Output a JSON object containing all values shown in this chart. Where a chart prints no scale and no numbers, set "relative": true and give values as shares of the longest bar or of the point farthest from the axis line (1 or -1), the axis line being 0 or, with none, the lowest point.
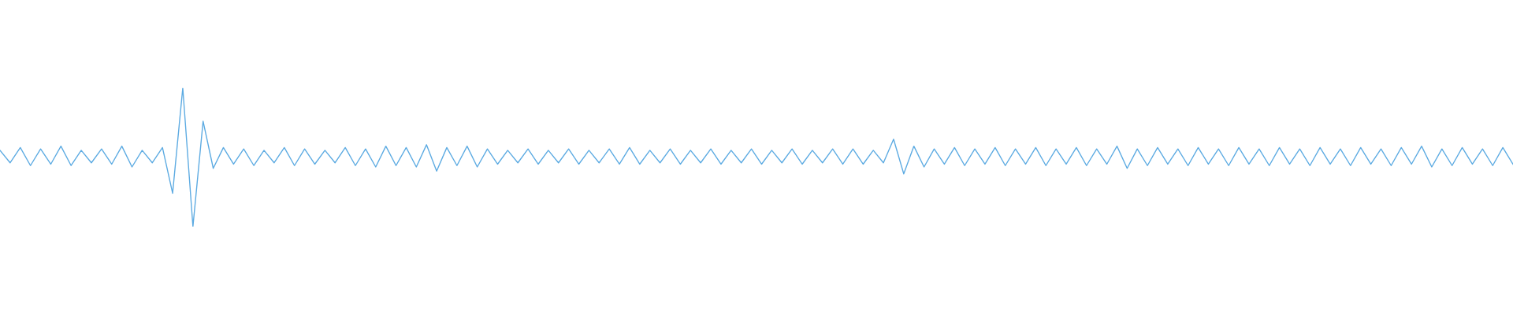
{
  "chart_data": {
    "type": "line",
    "relative": true,
    "categories": [
      null,
      null,
      null,
      null,
      null,
      null,
      null,
      null,
      null,
      null,
      null,
      null,
      null,
      null,
      null,
      null,
      null,
      null,
      null,
      null,
      null,
      null,
      null,
      null,
      null,
      null,
      null,
      null,
      null,
      null,
      null,
      null,
      null,
      null,
      null,
      null,
      null,
      null,
      null,
      null,
      null,
      null,
      null,
      null,
      null,
      null,
      null,
      null,
      null,
      null,
      null,
      null,
      null,
      null,
      null,
      null,
      null,
      null,
      null,
      null,
      null,
      null,
      null,
      null,
      null,
      null,
      null,
      null,
      null,
      null,
      null,
      null,
      null,
      null,
      null,
      null,
      null,
      null,
      null,
      null,
      null,
      null,
      null,
      null,
      null,
      null,
      null,
      null,
      null,
      null,
      null,
      null,
      null,
      null,
      null,
      null,
      null,
      null,
      null,
      null,
      null,
      null,
      null,
      null,
      null,
      null,
      null,
      null,
      null,
      null,
      null,
      null,
      null,
      null,
      null,
      null,
      null,
      null,
      null,
      null,
      null,
      null,
      null,
      null,
      null,
      null,
      null,
      null,
      null,
      null,
      null,
      null,
      null,
      null,
      null,
      null,
      null,
      null,
      null,
      null,
      null,
      null,
      null,
      null,
      null,
      null,
      null,
      null,
      null,
      null
    ],
    "series": [
      {
        "color": "#5dabe2",
        "values": [
          0.55,
          0.46,
          0.57,
          0.44,
          0.56,
          0.45,
          0.58,
          0.44,
          0.55,
          0.46,
          0.56,
          0.45,
          0.58,
          0.43,
          0.55,
          0.46,
          0.57,
          0.24,
          1.0,
          0.0,
          0.76,
          0.42,
          0.57,
          0.45,
          0.56,
          0.44,
          0.55,
          0.46,
          0.57,
          0.44,
          0.56,
          0.45,
          0.55,
          0.46,
          0.57,
          0.44,
          0.56,
          0.43,
          0.58,
          0.44,
          0.57,
          0.43,
          0.59,
          0.4,
          0.57,
          0.44,
          0.58,
          0.43,
          0.56,
          0.45,
          0.55,
          0.46,
          0.56,
          0.45,
          0.55,
          0.46,
          0.56,
          0.45,
          0.55,
          0.46,
          0.56,
          0.45,
          0.57,
          0.45,
          0.55,
          0.46,
          0.56,
          0.45,
          0.55,
          0.46,
          0.56,
          0.45,
          0.55,
          0.46,
          0.56,
          0.45,
          0.55,
          0.46,
          0.56,
          0.45,
          0.55,
          0.46,
          0.56,
          0.45,
          0.56,
          0.45,
          0.55,
          0.46,
          0.63,
          0.38,
          0.58,
          0.43,
          0.56,
          0.45,
          0.57,
          0.44,
          0.56,
          0.45,
          0.57,
          0.44,
          0.56,
          0.45,
          0.57,
          0.44,
          0.56,
          0.45,
          0.57,
          0.44,
          0.56,
          0.45,
          0.58,
          0.42,
          0.56,
          0.44,
          0.57,
          0.45,
          0.56,
          0.44,
          0.57,
          0.45,
          0.56,
          0.44,
          0.57,
          0.45,
          0.56,
          0.44,
          0.57,
          0.45,
          0.56,
          0.44,
          0.57,
          0.45,
          0.56,
          0.44,
          0.57,
          0.45,
          0.56,
          0.44,
          0.57,
          0.45,
          0.58,
          0.43,
          0.56,
          0.44,
          0.57,
          0.45,
          0.56,
          0.44,
          0.57,
          0.45
        ]
      }
    ]
  }
}
